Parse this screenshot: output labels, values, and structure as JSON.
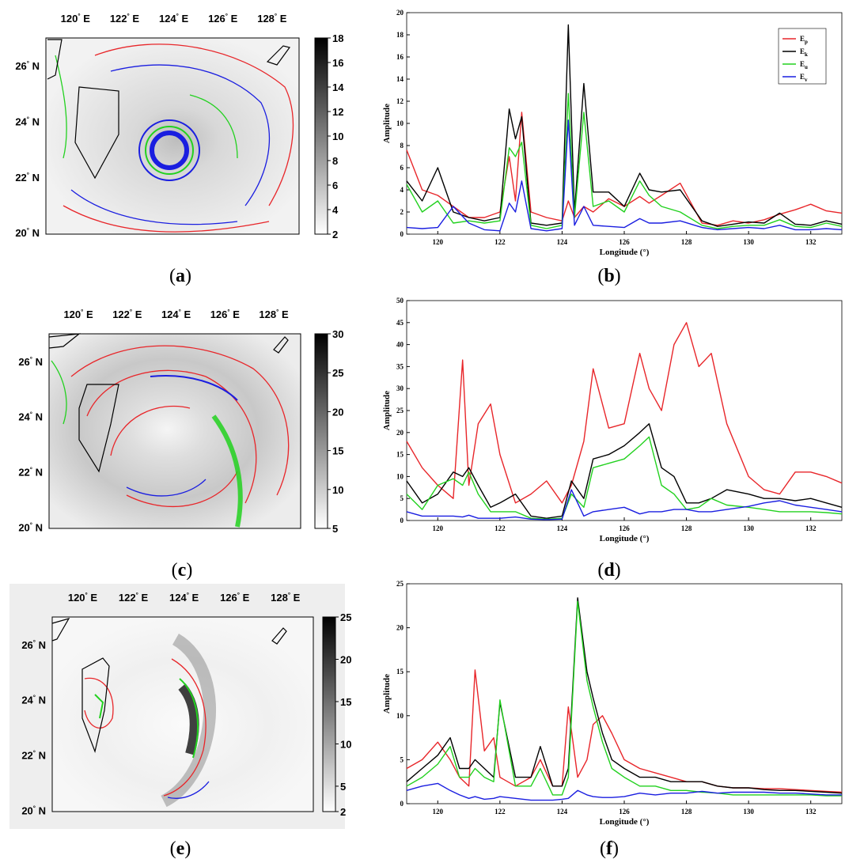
{
  "chart_data": [
    {
      "id": "a",
      "type": "heatmap",
      "caption": "a",
      "lon_ticks": [
        120,
        122,
        124,
        126,
        128
      ],
      "lon_unit": "E",
      "lat_ticks": [
        20,
        22,
        24,
        26
      ],
      "lat_unit": "N",
      "colorbar": {
        "ticks": [
          2,
          4,
          6,
          8,
          10,
          12,
          14,
          16,
          18
        ],
        "range": [
          2,
          18
        ]
      },
      "contour_colors": {
        "Ep": "#e8262a",
        "Eu": "#22d11f",
        "Ev": "#1a1ee0",
        "coast": "#000000"
      }
    },
    {
      "id": "b",
      "type": "line",
      "caption": "b",
      "xlabel": "Longitude (°)",
      "ylabel": "Amplitude",
      "xlim": [
        119,
        133
      ],
      "ylim": [
        0,
        20
      ],
      "xticks": [
        120,
        122,
        124,
        126,
        128,
        130,
        132
      ],
      "yticks": [
        0,
        2,
        4,
        6,
        8,
        10,
        12,
        14,
        16,
        18,
        20
      ],
      "legend": {
        "position": "top-right",
        "entries": [
          {
            "base": "E",
            "sub": "p",
            "color": "#e8262a"
          },
          {
            "base": "E",
            "sub": "k",
            "color": "#000000"
          },
          {
            "base": "E",
            "sub": "u",
            "color": "#22d11f"
          },
          {
            "base": "E",
            "sub": "v",
            "color": "#1a1ee0"
          }
        ]
      },
      "x": [
        119,
        119.5,
        120,
        120.5,
        121,
        121.5,
        122,
        122.3,
        122.5,
        122.7,
        123,
        123.5,
        124,
        124.2,
        124.4,
        124.7,
        125,
        125.5,
        126,
        126.5,
        126.8,
        127.2,
        127.8,
        128.5,
        129,
        129.5,
        130,
        130.5,
        131,
        131.5,
        132,
        132.5,
        133
      ],
      "series": [
        {
          "name": "Ep",
          "color": "#e8262a",
          "values": [
            7.6,
            4,
            3.5,
            2.5,
            1.5,
            1.5,
            2,
            7,
            3,
            11,
            2,
            1.5,
            1.2,
            3,
            1.5,
            2.5,
            2,
            3.2,
            2.5,
            3.4,
            2.8,
            3.5,
            4.6,
            1,
            0.8,
            1.2,
            1,
            1.3,
            1.8,
            2.2,
            2.7,
            2.1,
            1.9
          ]
        },
        {
          "name": "Ek",
          "color": "#000000",
          "values": [
            4.8,
            3,
            6,
            2,
            1.5,
            1.2,
            1.5,
            11.3,
            8.6,
            10.6,
            1,
            0.8,
            1,
            18.9,
            2,
            13.6,
            3.8,
            3.8,
            2.5,
            5.5,
            4,
            3.8,
            4,
            1.2,
            0.7,
            0.9,
            1.1,
            1,
            1.9,
            0.9,
            0.8,
            1.2,
            0.9
          ]
        },
        {
          "name": "Eu",
          "color": "#22d11f",
          "values": [
            4.5,
            2,
            3,
            1,
            1.2,
            1,
            1.2,
            7.8,
            7,
            8.3,
            0.8,
            0.5,
            0.8,
            12.7,
            1.5,
            11,
            2.5,
            3,
            2,
            4.8,
            3.5,
            2.5,
            2,
            0.8,
            0.5,
            0.7,
            0.8,
            0.8,
            1.3,
            0.7,
            0.6,
            1,
            0.7
          ]
        },
        {
          "name": "Ev",
          "color": "#1a1ee0",
          "values": [
            0.6,
            0.5,
            0.6,
            2.5,
            1,
            0.4,
            0.3,
            2.8,
            2,
            4.8,
            0.5,
            0.3,
            0.5,
            10.3,
            0.8,
            2.5,
            0.8,
            0.7,
            0.6,
            1.4,
            1,
            1,
            1.2,
            0.6,
            0.4,
            0.5,
            0.6,
            0.5,
            0.8,
            0.4,
            0.4,
            0.5,
            0.4
          ]
        }
      ]
    },
    {
      "id": "c",
      "type": "heatmap",
      "caption": "c",
      "lon_ticks": [
        120,
        122,
        124,
        126,
        128
      ],
      "lon_unit": "E",
      "lat_ticks": [
        20,
        22,
        24,
        26
      ],
      "lat_unit": "N",
      "colorbar": {
        "ticks": [
          5,
          10,
          15,
          20,
          25,
          30
        ],
        "range": [
          5,
          30
        ]
      }
    },
    {
      "id": "d",
      "type": "line",
      "caption": "d",
      "xlabel": "Longitude (°)",
      "ylabel": "Amplitude",
      "xlim": [
        119,
        133
      ],
      "ylim": [
        0,
        50
      ],
      "xticks": [
        120,
        122,
        124,
        126,
        128,
        130,
        132
      ],
      "yticks": [
        0,
        5,
        10,
        15,
        20,
        25,
        30,
        35,
        40,
        45,
        50
      ],
      "x": [
        119,
        119.5,
        120,
        120.5,
        120.8,
        121,
        121.3,
        121.7,
        122,
        122.5,
        123,
        123.5,
        124,
        124.3,
        124.7,
        125,
        125.5,
        126,
        126.5,
        126.8,
        127.2,
        127.6,
        128,
        128.4,
        128.8,
        129.3,
        130,
        130.5,
        131,
        131.5,
        132,
        132.5,
        133
      ],
      "series": [
        {
          "name": "Ep",
          "color": "#e8262a",
          "values": [
            18,
            12,
            8,
            5,
            36.5,
            8,
            22,
            26.5,
            15,
            4,
            6,
            9,
            4,
            8,
            18,
            34.5,
            21,
            22,
            38,
            30,
            25,
            40,
            45,
            35,
            38,
            22,
            10,
            7,
            6,
            11,
            11,
            10,
            8.5
          ]
        },
        {
          "name": "Ek",
          "color": "#000000",
          "values": [
            9,
            4,
            6,
            11,
            10,
            12,
            8,
            3,
            4,
            6,
            1,
            0.5,
            1,
            9,
            5,
            14,
            15,
            17,
            20,
            22,
            12,
            10,
            4,
            4,
            5,
            7,
            6,
            5,
            5,
            4.5,
            5,
            4,
            3
          ]
        },
        {
          "name": "Eu",
          "color": "#22d11f",
          "values": [
            6,
            2.5,
            8,
            9.5,
            8,
            11,
            6,
            2,
            2,
            2,
            0.5,
            0.3,
            0.5,
            6,
            3,
            12,
            13,
            14,
            17,
            19,
            8,
            6,
            2.5,
            3,
            5,
            3.5,
            3,
            2.5,
            2,
            2,
            2,
            1.8,
            1.5
          ]
        },
        {
          "name": "Ev",
          "color": "#1a1ee0",
          "values": [
            2,
            1,
            1,
            1,
            0.8,
            1.2,
            0.5,
            0.5,
            0.5,
            0.8,
            0.3,
            0.2,
            0.3,
            7,
            1,
            2,
            2.5,
            3,
            1.5,
            2,
            2,
            2.5,
            2.5,
            2,
            2,
            2.5,
            3.2,
            4,
            4.5,
            3.5,
            3,
            2.5,
            2
          ]
        }
      ]
    },
    {
      "id": "e",
      "type": "heatmap",
      "caption": "e",
      "lon_ticks": [
        120,
        122,
        124,
        126,
        128
      ],
      "lon_unit": "E",
      "lat_ticks": [
        20,
        22,
        24,
        26
      ],
      "lat_unit": "N",
      "colorbar": {
        "ticks": [
          2,
          5,
          10,
          15,
          20,
          25
        ],
        "range": [
          2,
          25
        ]
      }
    },
    {
      "id": "f",
      "type": "line",
      "caption": "f",
      "xlabel": "Longitude (°)",
      "ylabel": "Amplitude",
      "xlim": [
        119,
        133
      ],
      "ylim": [
        0,
        25
      ],
      "xticks": [
        120,
        122,
        124,
        126,
        128,
        130,
        132
      ],
      "yticks": [
        0,
        5,
        10,
        15,
        20,
        25
      ],
      "x": [
        119,
        119.5,
        120,
        120.4,
        120.7,
        121,
        121.2,
        121.5,
        121.8,
        122,
        122.5,
        123,
        123.3,
        123.7,
        124,
        124.2,
        124.5,
        124.8,
        125,
        125.3,
        125.6,
        126,
        126.5,
        127,
        127.5,
        128,
        128.5,
        129,
        129.5,
        130,
        130.5,
        131,
        131.5,
        132,
        132.5,
        133
      ],
      "series": [
        {
          "name": "Ep",
          "color": "#e8262a",
          "values": [
            4,
            5,
            7,
            5,
            3,
            2,
            15.2,
            6,
            7.5,
            3,
            2,
            3,
            5,
            2,
            2,
            11,
            3,
            5,
            9,
            10,
            8,
            5,
            4,
            3.5,
            3,
            2.5,
            2.5,
            2,
            1.8,
            1.8,
            1.7,
            1.7,
            1.6,
            1.5,
            1.4,
            1.3
          ]
        },
        {
          "name": "Ek",
          "color": "#000000",
          "values": [
            2.5,
            4,
            5.5,
            7.5,
            4,
            4,
            5,
            4,
            3,
            11.5,
            3,
            3,
            6.5,
            2,
            2,
            4,
            23.4,
            15,
            12,
            8,
            5,
            4,
            3,
            3,
            2.5,
            2.5,
            2.5,
            2,
            1.8,
            1.8,
            1.6,
            1.5,
            1.5,
            1.4,
            1.3,
            1.2
          ]
        },
        {
          "name": "Eu",
          "color": "#22d11f",
          "values": [
            2,
            3,
            4.5,
            6.5,
            3,
            3,
            4,
            3,
            2.5,
            11.8,
            2,
            2,
            4,
            1,
            1,
            3,
            23,
            14,
            11,
            7,
            4,
            3,
            2,
            2,
            1.5,
            1.5,
            1.3,
            1.2,
            1,
            1,
            1,
            1,
            1,
            1,
            0.9,
            0.9
          ]
        },
        {
          "name": "Ev",
          "color": "#1a1ee0",
          "values": [
            1.5,
            2,
            2.3,
            1.5,
            1,
            0.6,
            0.8,
            0.5,
            0.6,
            0.8,
            0.6,
            0.4,
            0.4,
            0.4,
            0.5,
            0.6,
            1.5,
            1,
            0.8,
            0.7,
            0.7,
            0.8,
            1.2,
            1,
            1.2,
            1.2,
            1.4,
            1.2,
            1.3,
            1.3,
            1.3,
            1.2,
            1.2,
            1.1,
            1,
            1
          ]
        }
      ]
    }
  ]
}
